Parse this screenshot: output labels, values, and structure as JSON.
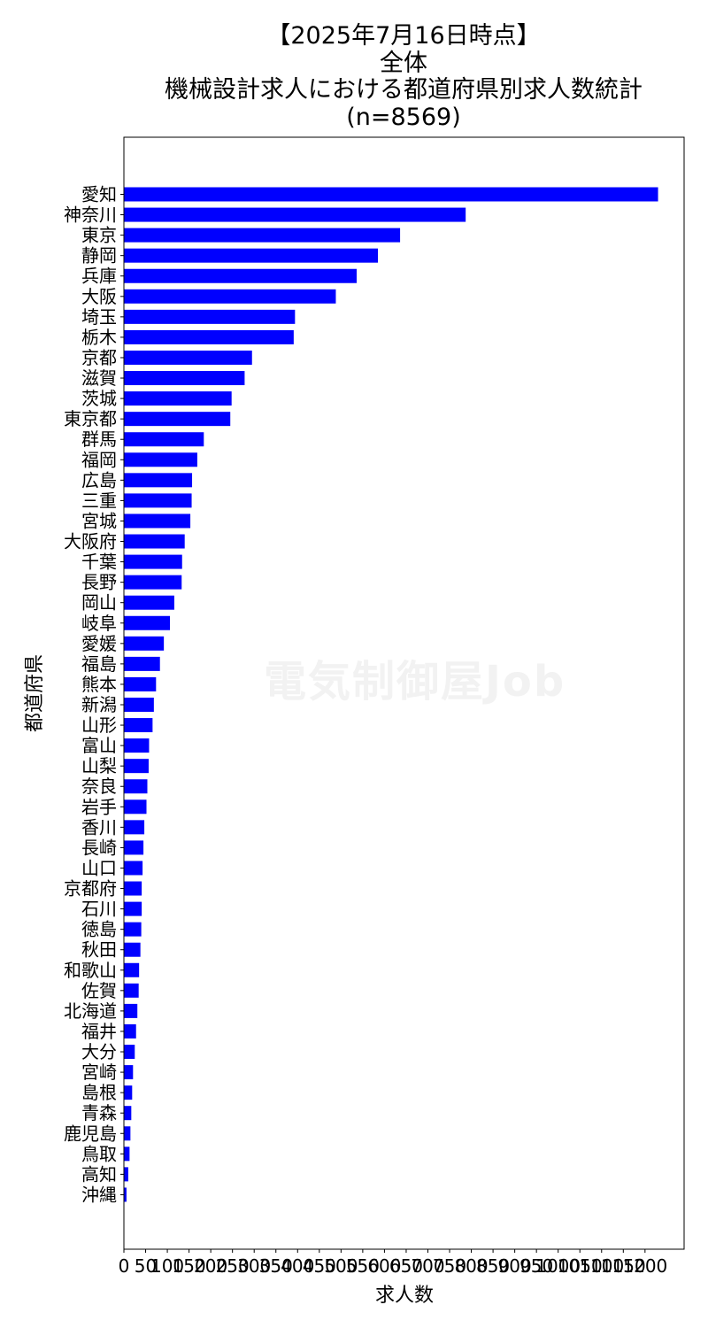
{
  "watermark": "電気制御屋Job",
  "chart_data": {
    "type": "bar",
    "orientation": "horizontal",
    "title_lines": [
      "【2025年7月16日時点】",
      "全体",
      "機械設計求人における都道府県別求人数統計",
      "(n=8569)"
    ],
    "xlabel": "求人数",
    "ylabel": "都道府県",
    "xlim": [
      0,
      1290
    ],
    "xticks": [
      0,
      50,
      100,
      150,
      200,
      250,
      300,
      350,
      400,
      450,
      500,
      550,
      600,
      650,
      700,
      750,
      800,
      850,
      900,
      950,
      1000,
      1050,
      1100,
      1150,
      1200
    ],
    "bar_color": "#0000ff",
    "grid": false,
    "categories": [
      "愛知",
      "神奈川",
      "東京",
      "静岡",
      "兵庫",
      "大阪",
      "埼玉",
      "栃木",
      "京都",
      "滋賀",
      "茨城",
      "東京都",
      "群馬",
      "福岡",
      "広島",
      "三重",
      "宮城",
      "大阪府",
      "千葉",
      "長野",
      "岡山",
      "岐阜",
      "愛媛",
      "福島",
      "熊本",
      "新潟",
      "山形",
      "富山",
      "山梨",
      "奈良",
      "岩手",
      "香川",
      "長崎",
      "山口",
      "京都府",
      "石川",
      "徳島",
      "秋田",
      "和歌山",
      "佐賀",
      "北海道",
      "福井",
      "大分",
      "宮崎",
      "島根",
      "青森",
      "鹿児島",
      "鳥取",
      "高知",
      "沖縄"
    ],
    "values": [
      1230,
      787,
      636,
      585,
      536,
      488,
      394,
      391,
      295,
      278,
      248,
      245,
      184,
      169,
      157,
      156,
      153,
      140,
      134,
      133,
      116,
      106,
      92,
      83,
      74,
      69,
      66,
      58,
      57,
      54,
      52,
      47,
      45,
      43,
      41,
      41,
      40,
      38,
      35,
      34,
      31,
      28,
      25,
      21,
      19,
      17,
      15,
      13,
      10,
      6
    ]
  }
}
